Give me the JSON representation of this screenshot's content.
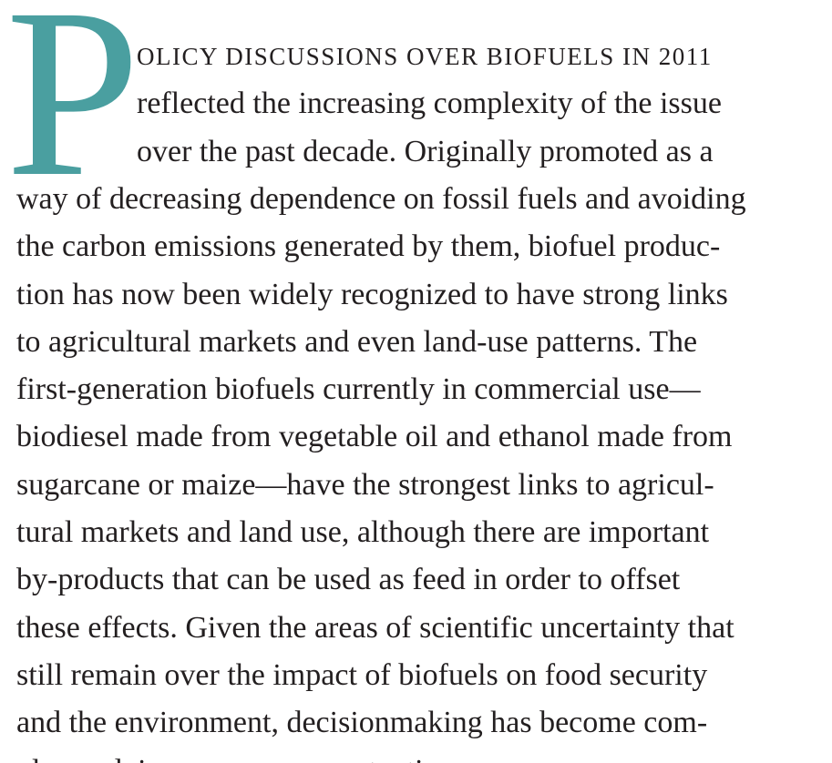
{
  "drop_cap": "P",
  "lead": "OLICY DISCUSSIONS OVER BIOFUELS IN 2011",
  "lines": [
    "reflected the increasing complexity of the issue",
    "over the past decade. Originally promoted as a",
    "way of decreasing dependence on fossil fuels and avoiding",
    "the carbon emissions generated by them, biofuel produc-",
    "tion has now been widely recognized to have strong links",
    "to agricultural markets and even land-use patterns. The",
    "first-generation biofuels currently in commercial use—",
    "biodiesel made from vegetable oil and ethanol made from",
    "sugarcane or maize—have the strongest links to agricul-",
    "tural markets and land use, although there are important",
    "by-products that can be used as feed in order to offset",
    "these effects. Given the areas of scientific uncertainty that",
    "still remain over the impact of biofuels on food security",
    "and the environment, decisionmaking has become com-",
    "plex and, in some cases, contentious."
  ]
}
